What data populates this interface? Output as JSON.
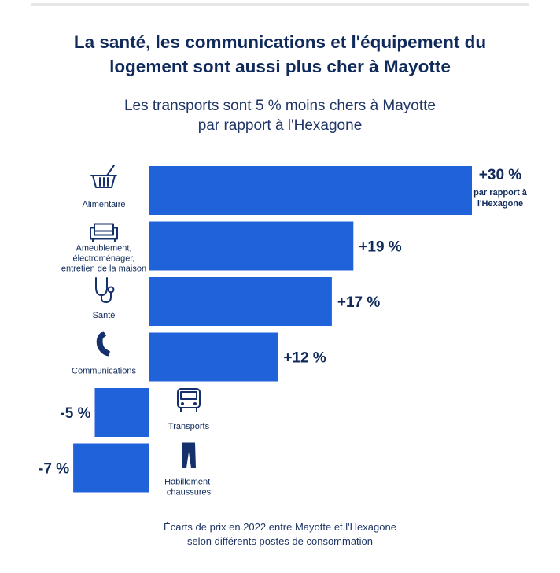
{
  "title_line1": "La santé, les communications et l'équipement du",
  "title_line2": "logement sont aussi plus cher à Mayotte",
  "subtitle_line1": "Les transports sont 5 % moins chers à Mayotte",
  "subtitle_line2": "par rapport à l'Hexagone",
  "footnote_line1": "Écarts de prix en 2022 entre Mayotte et l'Hexagone",
  "footnote_line2": "selon différents postes de consommation",
  "colors": {
    "bar": "#1f62d9",
    "text": "#102a5c"
  },
  "chart_data": {
    "type": "bar",
    "orientation": "horizontal",
    "title": "La santé, les communications et l'équipement du logement sont aussi plus cher à Mayotte",
    "subtitle": "Les transports sont 5 % moins chers à Mayotte par rapport à l'Hexagone",
    "unit": "%",
    "grid": false,
    "categories": [
      {
        "label_lines": [
          "Alimentaire"
        ],
        "icon": "basket-icon"
      },
      {
        "label_lines": [
          "Ameublement,",
          "électroménager,",
          "entretien de la maison"
        ],
        "icon": "sofa-icon"
      },
      {
        "label_lines": [
          "Santé"
        ],
        "icon": "stethoscope-icon"
      },
      {
        "label_lines": [
          "Communications"
        ],
        "icon": "phone-icon"
      },
      {
        "label_lines": [
          "Transports"
        ],
        "icon": "bus-icon"
      },
      {
        "label_lines": [
          "Habillement-",
          "chaussures"
        ],
        "icon": "trousers-icon"
      }
    ],
    "values": [
      30,
      19,
      17,
      12,
      -5,
      -7
    ],
    "value_labels": [
      "+30 %",
      "+19 %",
      "+17 %",
      "+12 %",
      "-5 %",
      "-7 %"
    ],
    "annotation_lines": [
      "par rapport à",
      "l'Hexagone"
    ]
  }
}
